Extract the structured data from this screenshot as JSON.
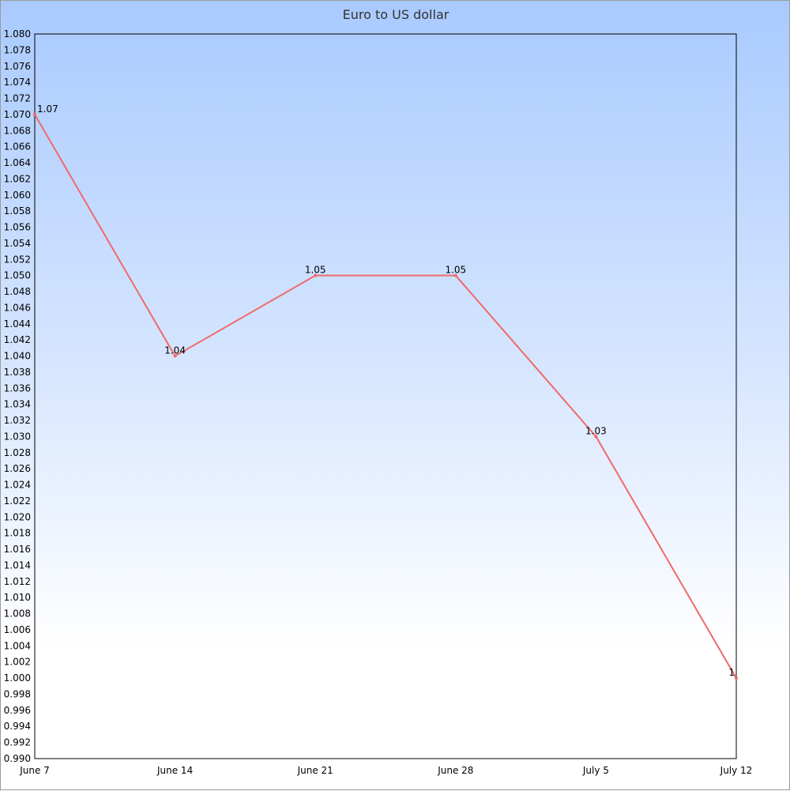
{
  "chart_data": {
    "type": "line",
    "title": "Euro to US dollar",
    "categories": [
      "June 7",
      "June 14",
      "June 21",
      "June 28",
      "July 5",
      "July 12"
    ],
    "series": [
      {
        "values": [
          1.07,
          1.04,
          1.05,
          1.05,
          1.03,
          1.0
        ],
        "labels": [
          "1.07",
          "1.04",
          "1.05",
          "1.05",
          "1.03",
          "1"
        ]
      }
    ],
    "ylim": [
      0.99,
      1.08
    ],
    "ytick_step": 0.002,
    "yticks_decimals": 3,
    "xlabel": "",
    "ylabel": "",
    "grid": false,
    "line_color": "#f06a6a"
  }
}
